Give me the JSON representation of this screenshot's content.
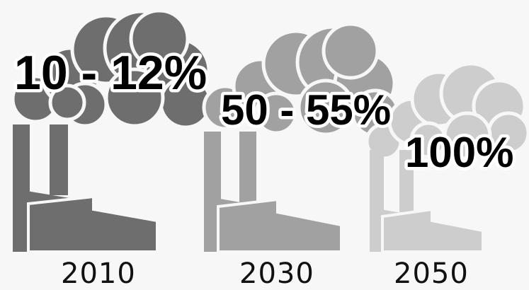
{
  "panels": [
    {
      "year": "2010",
      "percentage": "10 - 12%",
      "color": "#6e6e6e"
    },
    {
      "year": "2030",
      "percentage": "50 - 55%",
      "color": "#a1a1a1"
    },
    {
      "year": "2050",
      "percentage": "100%",
      "color": "#cdcdcd"
    }
  ],
  "icons": [
    "factory-icon",
    "smoke-cloud-icon"
  ]
}
